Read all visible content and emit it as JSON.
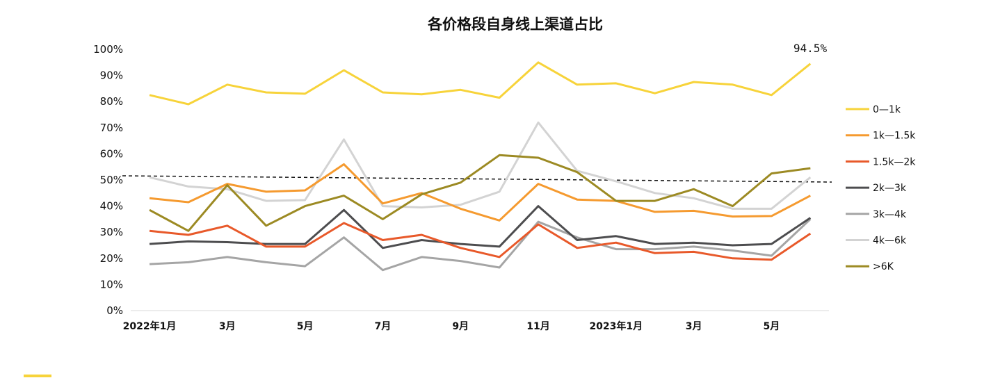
{
  "chart_data": {
    "type": "line",
    "title": "各价格段自身线上渠道占比",
    "xlabel": "",
    "ylabel": "",
    "ylim": [
      0,
      100
    ],
    "y_ticks": [
      "0%",
      "10%",
      "20%",
      "30%",
      "40%",
      "50%",
      "60%",
      "70%",
      "80%",
      "90%",
      "100%"
    ],
    "x": [
      "2022-01",
      "2022-02",
      "2022-03",
      "2022-04",
      "2022-05",
      "2022-06",
      "2022-07",
      "2022-08",
      "2022-09",
      "2022-10",
      "2022-11",
      "2022-12",
      "2023-01",
      "2023-02",
      "2023-03",
      "2023-04",
      "2023-05",
      "2023-06"
    ],
    "x_tick_labels": [
      "2022年1月",
      "3月",
      "5月",
      "7月",
      "9月",
      "11月",
      "2023年1月",
      "3月",
      "5月"
    ],
    "reference_line": 50,
    "annotation": "94.5%",
    "legend_position": "right",
    "grid": false,
    "series": [
      {
        "name": "0—1k",
        "color": "#F7D33A",
        "values": [
          82.5,
          79,
          86.5,
          83.5,
          83,
          92,
          83.5,
          82.8,
          84.5,
          81.5,
          95,
          86.5,
          87,
          83.2,
          87.5,
          86.5,
          82.5,
          94.5
        ]
      },
      {
        "name": "1k—1.5k",
        "color": "#F59A2F",
        "values": [
          43,
          41.5,
          48.5,
          45.5,
          46,
          56,
          41,
          45,
          39,
          34.5,
          48.5,
          42.5,
          42,
          37.8,
          38.2,
          36,
          36.2,
          44
        ]
      },
      {
        "name": "1.5k—2k",
        "color": "#E8592A",
        "values": [
          30.5,
          29,
          32.5,
          24.5,
          24.5,
          33.5,
          27,
          29,
          24,
          20.5,
          33,
          24,
          26,
          22,
          22.5,
          20,
          19.5,
          29.5
        ]
      },
      {
        "name": "2k—3k",
        "color": "#4D4D4F",
        "values": [
          25.5,
          26.5,
          26.2,
          25.5,
          25.5,
          38.5,
          24,
          27,
          25.5,
          24.5,
          40,
          27,
          28.5,
          25.5,
          26,
          25,
          25.5,
          35.5
        ]
      },
      {
        "name": "3k—4k",
        "color": "#A5A5A5",
        "values": [
          17.8,
          18.5,
          20.5,
          18.5,
          17,
          28,
          15.5,
          20.5,
          19,
          16.5,
          34,
          28,
          23.5,
          23.5,
          24.5,
          23,
          21,
          35
        ]
      },
      {
        "name": "4k—6k",
        "color": "#D3D3D3",
        "values": [
          51,
          47.5,
          46.5,
          42,
          42.3,
          65.5,
          40,
          39.5,
          40.5,
          45.5,
          72,
          53.5,
          49.5,
          45,
          43,
          39,
          39,
          51
        ]
      },
      {
        "name": ">6K",
        "color": "#9C8A23",
        "values": [
          38.5,
          30.5,
          48,
          32.5,
          40,
          44,
          35,
          44.5,
          49,
          59.5,
          58.5,
          53,
          42,
          42,
          46.5,
          40,
          52.5,
          54.5
        ]
      }
    ]
  }
}
